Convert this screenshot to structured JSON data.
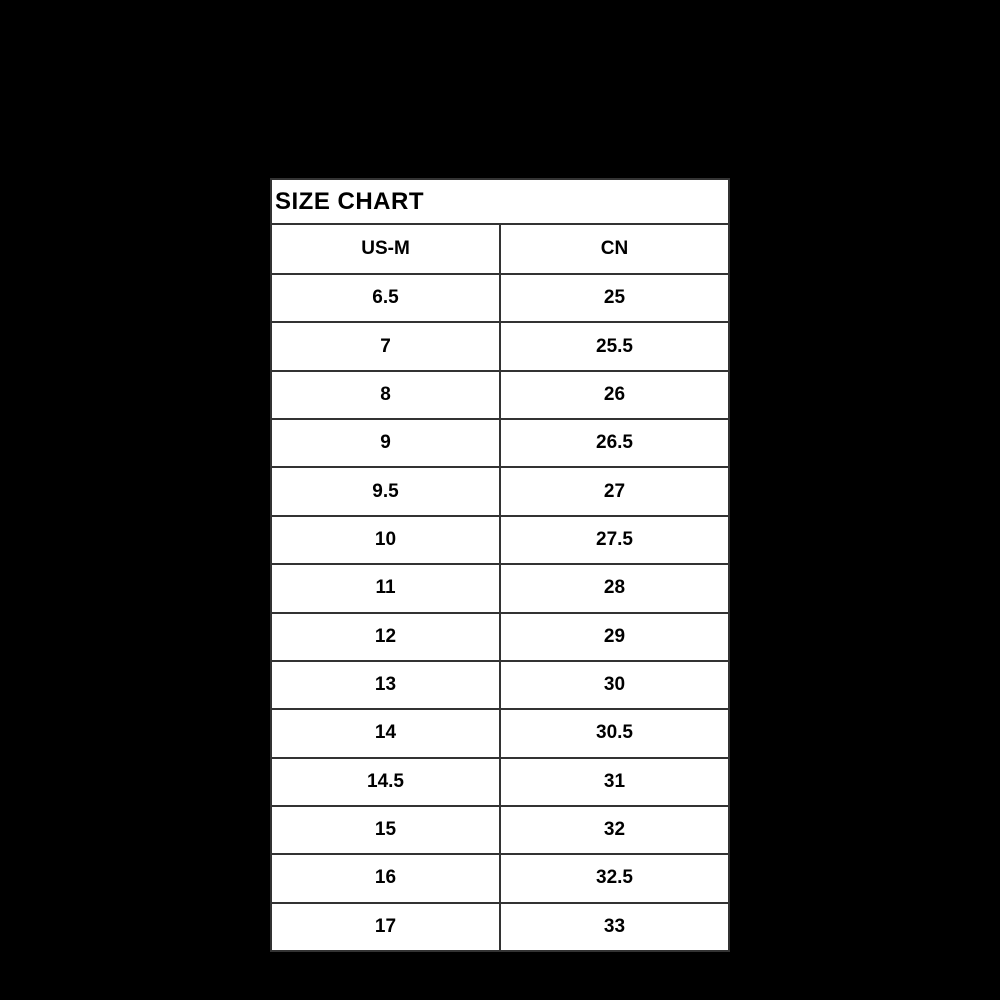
{
  "title": "SIZE CHART",
  "colors": {
    "page_background": "#000000",
    "table_background": "#ffffff",
    "text": "#000000",
    "border": "#333333"
  },
  "table": {
    "columns": [
      "US-M",
      "CN"
    ],
    "rows": [
      {
        "us_m": "6.5",
        "cn": "25"
      },
      {
        "us_m": "7",
        "cn": "25.5"
      },
      {
        "us_m": "8",
        "cn": "26"
      },
      {
        "us_m": "9",
        "cn": "26.5"
      },
      {
        "us_m": "9.5",
        "cn": "27"
      },
      {
        "us_m": "10",
        "cn": "27.5"
      },
      {
        "us_m": "11",
        "cn": "28"
      },
      {
        "us_m": "12",
        "cn": "29"
      },
      {
        "us_m": "13",
        "cn": "30"
      },
      {
        "us_m": "14",
        "cn": "30.5"
      },
      {
        "us_m": "14.5",
        "cn": "31"
      },
      {
        "us_m": "15",
        "cn": "32"
      },
      {
        "us_m": "16",
        "cn": "32.5"
      },
      {
        "us_m": "17",
        "cn": "33"
      }
    ]
  }
}
